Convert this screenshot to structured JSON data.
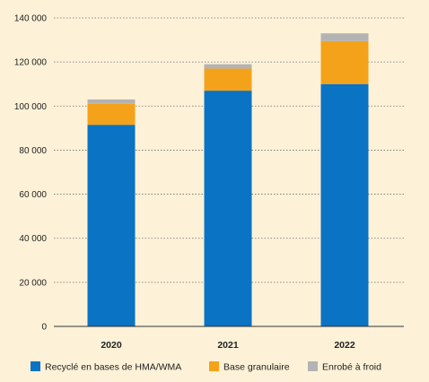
{
  "chart_data": {
    "type": "bar",
    "stacked": true,
    "categories": [
      "2020",
      "2021",
      "2022"
    ],
    "series": [
      {
        "name": "Recyclé en bases de HMA/WMA",
        "color": "#0a73c4",
        "values": [
          91500,
          107000,
          110000
        ]
      },
      {
        "name": "Base granulaire",
        "color": "#f5a21b",
        "values": [
          9500,
          10000,
          19500
        ]
      },
      {
        "name": "Enrobé à froid",
        "color": "#b3b3b3",
        "values": [
          2000,
          2000,
          3500
        ]
      }
    ],
    "y_ticks": [
      {
        "value": 0,
        "label": "0"
      },
      {
        "value": 20000,
        "label": "20 000"
      },
      {
        "value": 40000,
        "label": "40 000"
      },
      {
        "value": 60000,
        "label": "60 000"
      },
      {
        "value": 80000,
        "label": "80 000"
      },
      {
        "value": 100000,
        "label": "100 000"
      },
      {
        "value": 120000,
        "label": "120 000"
      },
      {
        "value": 140000,
        "label": "140 000"
      }
    ],
    "ylim": [
      0,
      140000
    ],
    "grid": "y-dashed",
    "legend_position": "bottom",
    "title": "",
    "xlabel": "",
    "ylabel": ""
  },
  "colors": {
    "background": "#fdf1d7",
    "grid": "#6f6f6f",
    "axis": "#333333"
  }
}
